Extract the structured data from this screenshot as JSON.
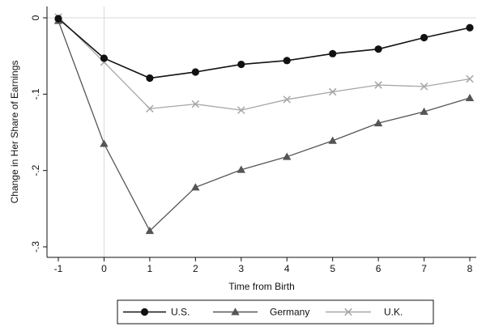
{
  "chart_data": {
    "type": "line",
    "title": "",
    "xlabel": "Time from Birth",
    "ylabel": "Change in Her Share of Earnings",
    "x": [
      -1,
      0,
      1,
      2,
      3,
      4,
      5,
      6,
      7,
      8
    ],
    "xlim": [
      -1,
      8
    ],
    "ylim": [
      -0.3,
      0
    ],
    "xticks": [
      "-1",
      "0",
      "1",
      "2",
      "3",
      "4",
      "5",
      "6",
      "7",
      "8"
    ],
    "yticks": [
      {
        "value": 0,
        "label": "0"
      },
      {
        "value": -0.1,
        "label": "-.1"
      },
      {
        "value": -0.2,
        "label": "-.2"
      },
      {
        "value": -0.3,
        "label": "-.3"
      }
    ],
    "grid": false,
    "reference_lines": {
      "x": 0,
      "y": 0
    },
    "legend_position": "bottom",
    "series": [
      {
        "name": "U.S.",
        "marker": "circle",
        "color": "#111111",
        "values": [
          -0.001,
          -0.053,
          -0.079,
          -0.071,
          -0.061,
          -0.056,
          -0.047,
          -0.041,
          -0.026,
          -0.013
        ]
      },
      {
        "name": "Germany",
        "marker": "triangle",
        "color": "#555555",
        "values": [
          -0.004,
          -0.165,
          -0.279,
          -0.222,
          -0.199,
          -0.182,
          -0.161,
          -0.138,
          -0.123,
          -0.105
        ]
      },
      {
        "name": "U.K.",
        "marker": "x",
        "color": "#a6a6a6",
        "values": [
          0.001,
          -0.058,
          -0.119,
          -0.113,
          -0.121,
          -0.107,
          -0.097,
          -0.088,
          -0.09,
          -0.08
        ]
      }
    ]
  }
}
